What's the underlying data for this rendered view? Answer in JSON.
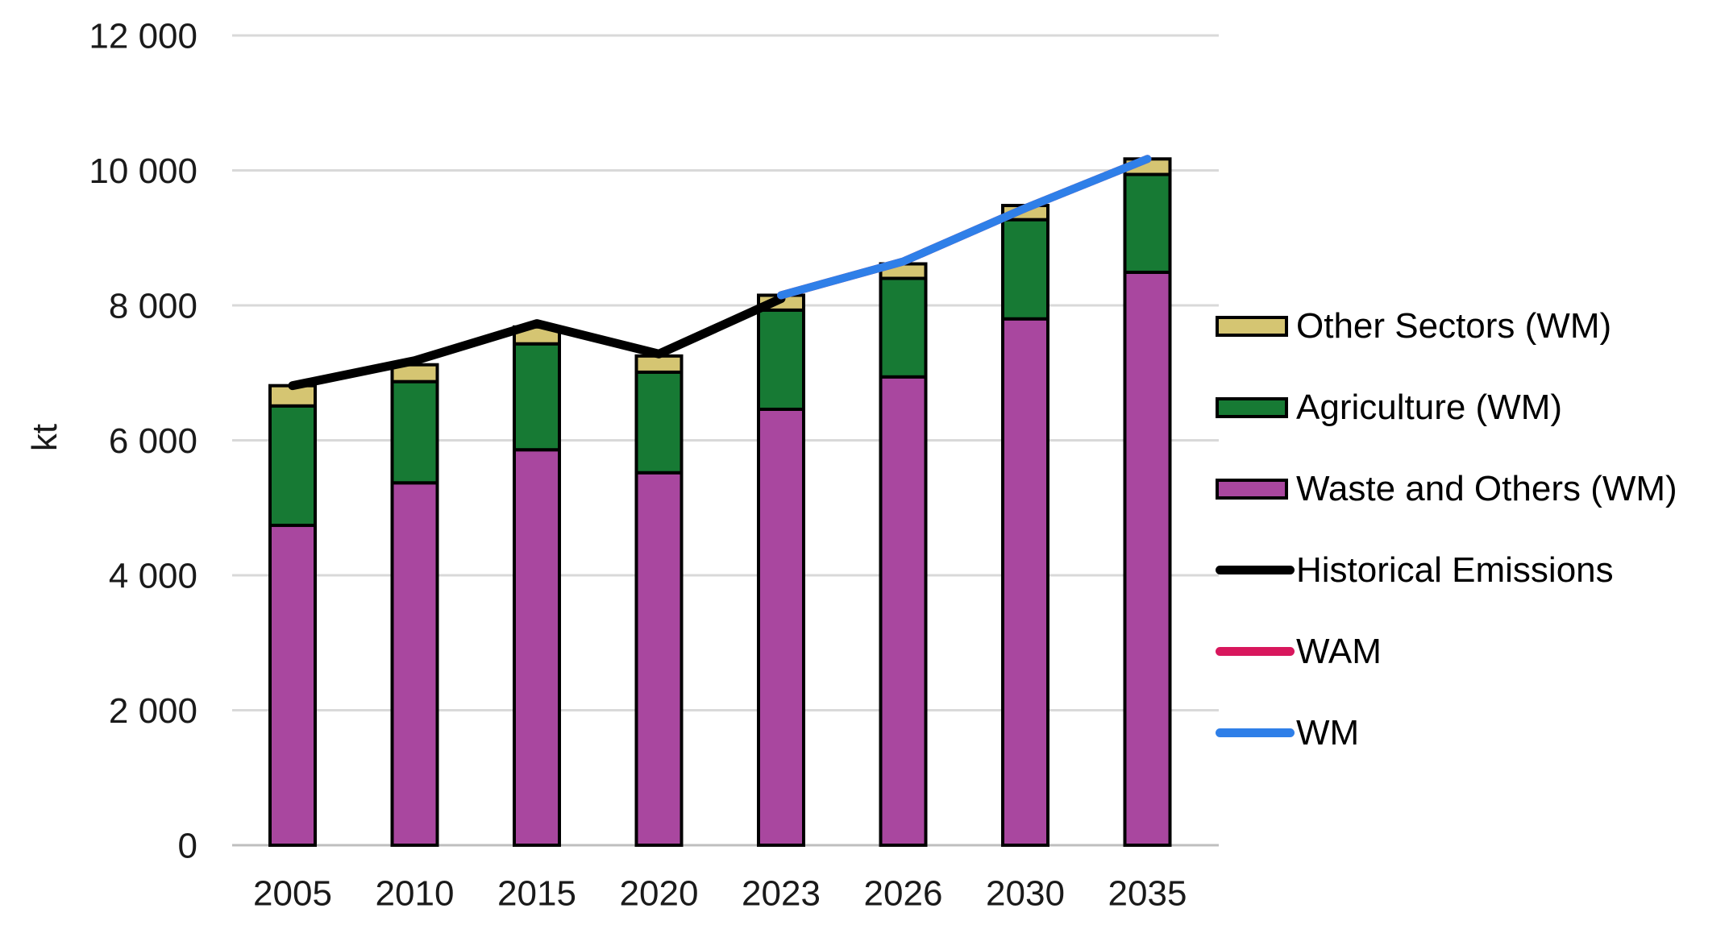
{
  "chart_data": {
    "type": "bar",
    "subtype": "stacked-bars-with-line-overlay",
    "title": "",
    "xlabel": "",
    "ylabel": "kt",
    "categories": [
      "2005",
      "2010",
      "2015",
      "2020",
      "2023",
      "2026",
      "2030",
      "2035"
    ],
    "ylim": [
      0,
      12000
    ],
    "yticks": [
      0,
      2000,
      4000,
      6000,
      8000,
      10000,
      12000
    ],
    "ytick_labels": [
      "0",
      "2 000",
      "4 000",
      "6 000",
      "8 000",
      "10 000",
      "12 000"
    ],
    "grid": true,
    "legend_position": "right",
    "bar_series": [
      {
        "name": "Waste and Others (WM)",
        "color": "#A9479F",
        "values": [
          4740,
          5370,
          5860,
          5520,
          6460,
          6940,
          7800,
          8490
        ]
      },
      {
        "name": "Agriculture (WM)",
        "color": "#177A34",
        "values": [
          1770,
          1500,
          1570,
          1490,
          1470,
          1460,
          1470,
          1450
        ]
      },
      {
        "name": "Other Sectors (WM)",
        "color": "#D5C572",
        "values": [
          300,
          250,
          250,
          240,
          220,
          215,
          210,
          230
        ]
      }
    ],
    "line_series": [
      {
        "name": "Historical Emissions",
        "color": "#000000",
        "start_index": 0,
        "values": [
          6810,
          7180,
          7730,
          7280,
          8100
        ]
      },
      {
        "name": "WAM",
        "color": "#D8175D",
        "start_index": 4,
        "values": [
          8150,
          8650,
          9440,
          10170
        ]
      },
      {
        "name": "WM",
        "color": "#2F7FE8",
        "start_index": 4,
        "values": [
          8150,
          8650,
          9440,
          10170
        ]
      }
    ]
  },
  "legend": {
    "items": [
      {
        "label": "Other Sectors (WM)",
        "marker": "box",
        "color": "#D5C572"
      },
      {
        "label": "Agriculture (WM)",
        "marker": "box",
        "color": "#177A34"
      },
      {
        "label": "Waste and Others (WM)",
        "marker": "box",
        "color": "#A9479F"
      },
      {
        "label": "Historical Emissions",
        "marker": "line",
        "color": "#000000"
      },
      {
        "label": "WAM",
        "marker": "line",
        "color": "#D8175D"
      },
      {
        "label": "WM",
        "marker": "line",
        "color": "#2F7FE8"
      }
    ]
  },
  "colors": {
    "gridline": "#D9D9D9",
    "zero_axis": "#BFBFBF",
    "bar_border": "#000000"
  }
}
